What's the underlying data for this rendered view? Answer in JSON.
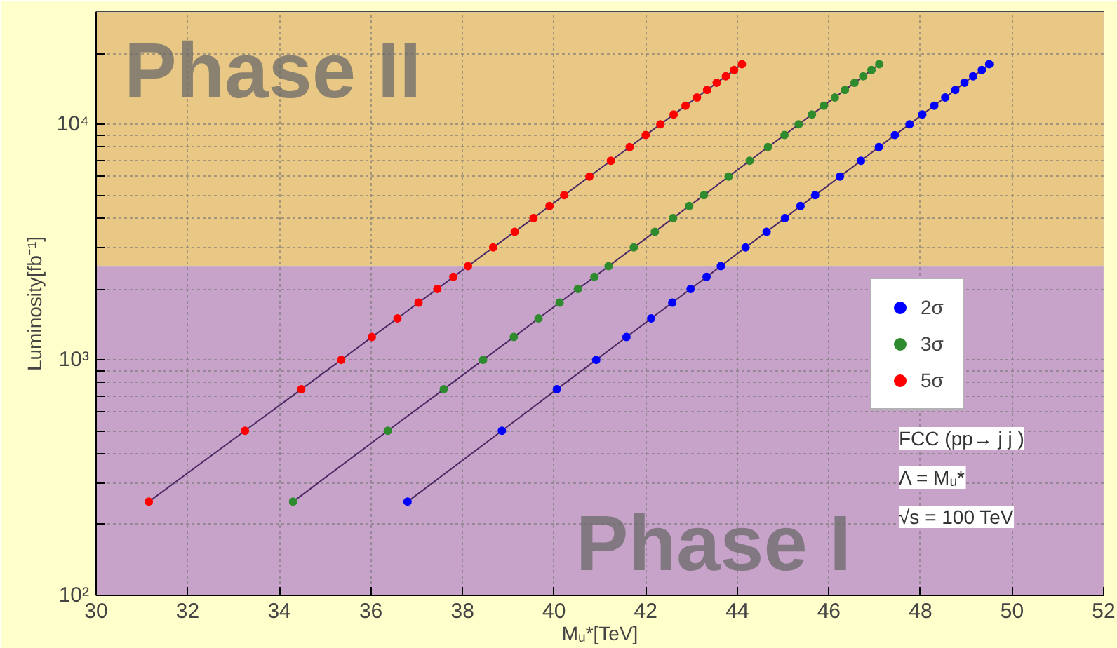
{
  "chart_data": {
    "type": "line",
    "xlabel": "Mᵤ*[TeV]",
    "ylabel": "Luminosity[fb⁻¹]",
    "log": "y",
    "marker": "circle",
    "line_style": "solid",
    "grid": true,
    "legend": "right",
    "xlim": [
      30,
      52
    ],
    "xticks": [
      30,
      32,
      34,
      36,
      38,
      40,
      42,
      44,
      46,
      48,
      50,
      52
    ],
    "ylim": [
      100,
      30000
    ],
    "yticks": [
      {
        "value": 100,
        "label": "10²"
      },
      {
        "value": 200,
        "label": null
      },
      {
        "value": 300,
        "label": null
      },
      {
        "value": 400,
        "label": null
      },
      {
        "value": 500,
        "label": null
      },
      {
        "value": 600,
        "label": null
      },
      {
        "value": 700,
        "label": null
      },
      {
        "value": 800,
        "label": null
      },
      {
        "value": 900,
        "label": null
      },
      {
        "value": 1000,
        "label": "10³"
      },
      {
        "value": 2000,
        "label": null
      },
      {
        "value": 3000,
        "label": null
      },
      {
        "value": 4000,
        "label": null
      },
      {
        "value": 5000,
        "label": null
      },
      {
        "value": 6000,
        "label": null
      },
      {
        "value": 7000,
        "label": null
      },
      {
        "value": 8000,
        "label": null
      },
      {
        "value": 9000,
        "label": null
      },
      {
        "value": 10000,
        "label": "10⁴"
      },
      {
        "value": 20000,
        "label": null
      }
    ],
    "bands": [
      {
        "axis": "y",
        "from": 100,
        "to": 2500,
        "label": "Phase I",
        "color": "#c8a3c9"
      },
      {
        "axis": "y",
        "from": 2500,
        "to": 30000,
        "label": "Phase II",
        "color": "#e9c784"
      }
    ],
    "annotations": [
      "FCC (pp→ j j )",
      "Λ = Mᵤ*",
      "√s = 100 TeV"
    ],
    "series": [
      {
        "name": "2σ",
        "color": "#0000ff",
        "x": [
          36.8,
          38.86,
          40.06,
          40.92,
          41.58,
          42.12,
          42.58,
          42.98,
          43.33,
          43.64,
          44.18,
          44.64,
          45.04,
          45.38,
          45.7,
          46.24,
          46.7,
          47.09,
          47.44,
          47.76,
          48.04,
          48.3,
          48.54,
          48.76,
          48.96,
          49.15,
          49.34,
          49.5
        ],
        "values": [
          250,
          500,
          750,
          1000,
          1250,
          1500,
          1750,
          2000,
          2250,
          2500,
          3000,
          3500,
          4000,
          4500,
          5000,
          6000,
          7000,
          8000,
          9000,
          10000,
          11000,
          12000,
          13000,
          14000,
          15000,
          16000,
          17000,
          18000
        ]
      },
      {
        "name": "3σ",
        "color": "#2e8b2e",
        "x": [
          34.3,
          36.37,
          37.59,
          38.45,
          39.12,
          39.66,
          40.12,
          40.52,
          40.88,
          41.19,
          41.74,
          42.2,
          42.6,
          42.95,
          43.27,
          43.81,
          44.27,
          44.67,
          45.03,
          45.34,
          45.63,
          45.89,
          46.13,
          46.35,
          46.56,
          46.75,
          46.93,
          47.1
        ],
        "values": [
          250,
          500,
          750,
          1000,
          1250,
          1500,
          1750,
          2000,
          2250,
          2500,
          3000,
          3500,
          4000,
          4500,
          5000,
          6000,
          7000,
          8000,
          9000,
          10000,
          11000,
          12000,
          13000,
          14000,
          15000,
          16000,
          17000,
          18000
        ]
      },
      {
        "name": "5σ",
        "color": "#ff0000",
        "x": [
          31.15,
          33.25,
          34.48,
          35.35,
          36.02,
          36.58,
          37.04,
          37.45,
          37.8,
          38.12,
          38.67,
          39.14,
          39.55,
          39.9,
          40.22,
          40.77,
          41.24,
          41.65,
          42.0,
          42.32,
          42.61,
          42.87,
          43.12,
          43.34,
          43.55,
          43.75,
          43.93,
          44.1
        ],
        "values": [
          250,
          500,
          750,
          1000,
          1250,
          1500,
          1750,
          2000,
          2250,
          2500,
          3000,
          3500,
          4000,
          4500,
          5000,
          6000,
          7000,
          8000,
          9000,
          10000,
          11000,
          12000,
          13000,
          14000,
          15000,
          16000,
          17000,
          18000
        ]
      }
    ]
  }
}
